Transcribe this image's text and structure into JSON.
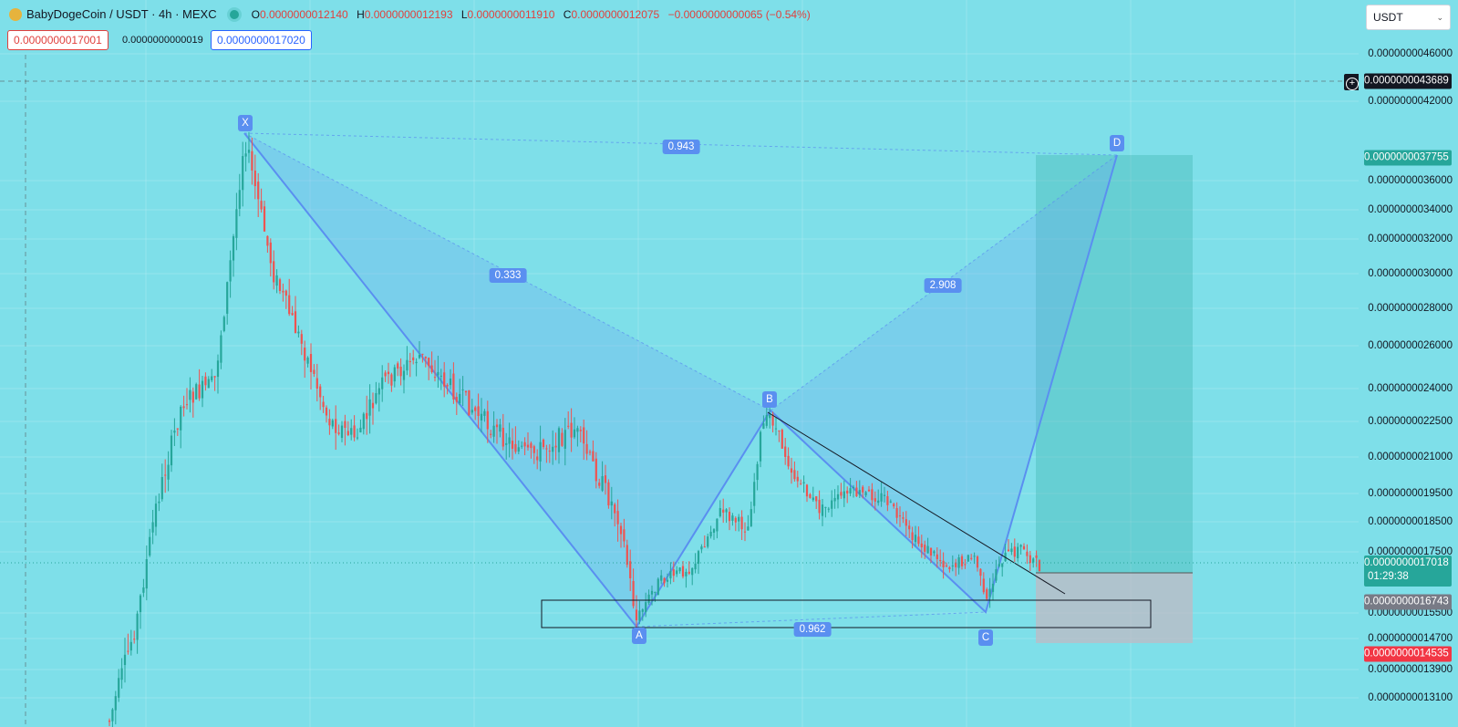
{
  "header": {
    "symbol": "BabyDogeCoin",
    "pair": "/ USDT · 4h · MEXC",
    "ohlc": [
      {
        "k": "O",
        "v": "0.0000000012140"
      },
      {
        "k": "H",
        "v": "0.0000000012193"
      },
      {
        "k": "L",
        "v": "0.0000000011910"
      },
      {
        "k": "C",
        "v": "0.0000000012075"
      }
    ],
    "change": "−0.0000000000065 (−0.54%)"
  },
  "trade": {
    "sell_price": "0.0000000017001",
    "spread": "0.0000000000019",
    "buy_price": "0.0000000017020"
  },
  "symbol_select": {
    "value": "USDT"
  },
  "axis": {
    "ticks": [
      "0.0000000046000",
      "0.0000000042000",
      "0.0000000036000",
      "0.0000000034000",
      "0.0000000032000",
      "0.0000000030000",
      "0.0000000028000",
      "0.0000000026000",
      "0.0000000024000",
      "0.0000000022500",
      "0.0000000021000",
      "0.0000000019500",
      "0.0000000018500",
      "0.0000000017500",
      "0.0000000015500",
      "0.0000000014700",
      "0.0000000013900",
      "0.0000000013100"
    ],
    "crosshair_price": "0.0000000043689",
    "target_price": "0.0000000037755",
    "last_price": "0.0000000017018",
    "countdown": "01:29:38",
    "entry_price": "0.0000000016743",
    "stop_price": "0.0000000014535"
  },
  "pattern": {
    "points": [
      "X",
      "A",
      "B",
      "C",
      "D"
    ],
    "ratios": {
      "xb": "0.333",
      "xd": "0.943",
      "bd": "2.908",
      "ac": "0.962"
    }
  },
  "colors": {
    "background": "#7edfe9",
    "up": "#26a69a",
    "down": "#ef5350",
    "pattern": "#5a8ff0",
    "profit": "#26a69a",
    "loss": "#b2b5be"
  }
}
